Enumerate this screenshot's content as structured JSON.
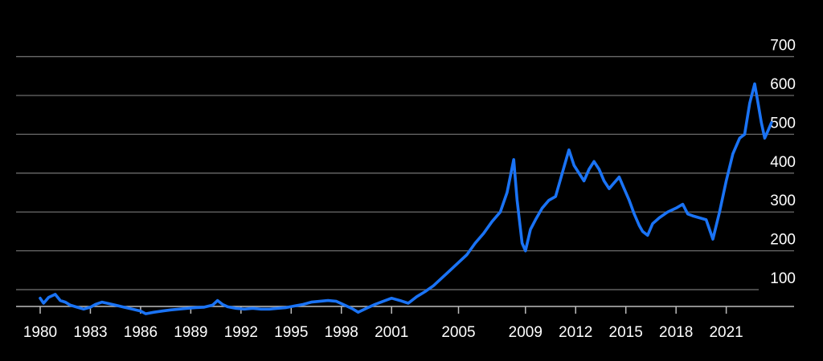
{
  "colors": {
    "background": "#000000",
    "line": "#1a73f5",
    "grid": "#6b6b6b",
    "text": "#ffffff"
  },
  "chart_data": {
    "type": "line",
    "title": "",
    "xlabel": "",
    "ylabel": "",
    "xlim": [
      1980,
      2024.5
    ],
    "ylim": [
      0,
      700
    ],
    "grid": "horizontal",
    "y_axis_side": "right",
    "y_ticks": [
      {
        "value": 100,
        "label": "100"
      },
      {
        "value": 200,
        "label": "200"
      },
      {
        "value": 300,
        "label": "300"
      },
      {
        "value": 400,
        "label": "400"
      },
      {
        "value": 500,
        "label": "500"
      },
      {
        "value": 600,
        "label": "600"
      },
      {
        "value": 700,
        "label": "700"
      }
    ],
    "x_ticks": [
      {
        "value": 1980,
        "label": "1980"
      },
      {
        "value": 1983,
        "label": "1983"
      },
      {
        "value": 1986,
        "label": "1986"
      },
      {
        "value": 1989,
        "label": "1989"
      },
      {
        "value": 1992,
        "label": "1992"
      },
      {
        "value": 1995,
        "label": "1995"
      },
      {
        "value": 1998,
        "label": "1998"
      },
      {
        "value": 2001,
        "label": "2001"
      },
      {
        "value": 2005,
        "label": "2005"
      },
      {
        "value": 2009,
        "label": "2009"
      },
      {
        "value": 2012,
        "label": "2012"
      },
      {
        "value": 2015,
        "label": "2015"
      },
      {
        "value": 2018,
        "label": "2018"
      },
      {
        "value": 2021,
        "label": "2021"
      }
    ],
    "series": [
      {
        "x": [
          1980.0,
          1980.2,
          1980.5,
          1980.9,
          1981.2,
          1981.5,
          1981.8,
          1982.2,
          1982.6,
          1983.0,
          1983.3,
          1983.7,
          1984.0,
          1984.5,
          1985.0,
          1985.5,
          1986.0,
          1986.3,
          1986.8,
          1987.3,
          1987.8,
          1988.3,
          1988.8,
          1989.3,
          1989.8,
          1990.3,
          1990.6,
          1990.9,
          1991.2,
          1991.7,
          1992.2,
          1992.7,
          1993.2,
          1993.7,
          1994.2,
          1994.7,
          1995.2,
          1995.7,
          1996.2,
          1996.7,
          1997.2,
          1997.7,
          1998.2,
          1998.7,
          1999.0,
          1999.5,
          2000.0,
          2000.5,
          2001.0,
          2001.5,
          2002.0,
          2002.5,
          2003.0,
          2003.5,
          2004.0,
          2004.5,
          2005.0,
          2005.5,
          2006.0,
          2006.5,
          2007.0,
          2007.5,
          2007.9,
          2008.3,
          2008.5,
          2008.8,
          2009.0,
          2009.3,
          2009.6,
          2010.0,
          2010.4,
          2010.8,
          2011.2,
          2011.6,
          2011.9,
          2012.2,
          2012.5,
          2012.8,
          2013.1,
          2013.4,
          2013.7,
          2014.0,
          2014.3,
          2014.6,
          2014.9,
          2015.2,
          2015.5,
          2015.8,
          2016.0,
          2016.3,
          2016.6,
          2017.0,
          2017.5,
          2018.0,
          2018.4,
          2018.7,
          2019.0,
          2019.4,
          2019.8,
          2020.2,
          2020.6,
          2021.0,
          2021.4,
          2021.8,
          2022.1,
          2022.4,
          2022.7,
          2022.9,
          2023.1,
          2023.3,
          2023.5,
          2023.7
        ],
        "values": [
          78,
          65,
          80,
          88,
          72,
          68,
          60,
          55,
          50,
          55,
          62,
          68,
          65,
          60,
          55,
          50,
          45,
          38,
          42,
          45,
          48,
          50,
          52,
          54,
          55,
          60,
          72,
          62,
          56,
          52,
          50,
          52,
          50,
          50,
          52,
          54,
          58,
          62,
          68,
          70,
          72,
          70,
          60,
          50,
          42,
          52,
          62,
          70,
          78,
          72,
          65,
          82,
          95,
          110,
          130,
          150,
          170,
          190,
          220,
          245,
          275,
          300,
          350,
          435,
          330,
          220,
          200,
          255,
          280,
          310,
          330,
          340,
          400,
          460,
          420,
          400,
          380,
          410,
          430,
          410,
          380,
          360,
          375,
          390,
          360,
          330,
          295,
          265,
          250,
          240,
          270,
          285,
          300,
          310,
          320,
          295,
          290,
          285,
          280,
          230,
          300,
          380,
          450,
          490,
          500,
          580,
          630,
          580,
          530,
          490,
          510,
          530
        ]
      }
    ]
  }
}
